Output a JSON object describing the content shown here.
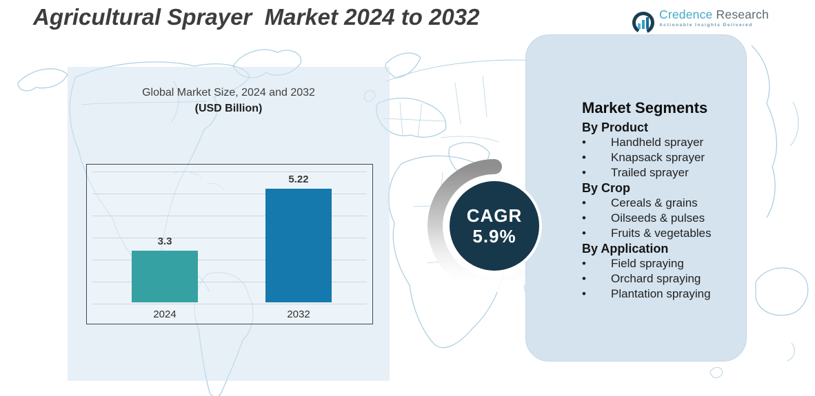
{
  "page": {
    "title": "Agricultural Sprayer  Market 2024 to 2032"
  },
  "logo": {
    "icon": "bar-chart-ring-icon",
    "brand_primary": "Credence",
    "brand_secondary": "Research",
    "tagline": "Actionable Insights Delivered"
  },
  "chart": {
    "title": "Global Market Size, 2024 and 2032",
    "subtitle": "(USD Billion)"
  },
  "chart_data": {
    "type": "bar",
    "title": "Global Market Size, 2024 and 2032",
    "subtitle": "(USD Billion)",
    "ylabel": "USD Billion",
    "xlabel": "",
    "categories": [
      "2024",
      "2032"
    ],
    "values": [
      3.3,
      5.22
    ],
    "value_labels": [
      "3.3",
      "5.22"
    ],
    "bar_colors": [
      "#36a1a2",
      "#1579ad"
    ],
    "ylim": [
      1.7,
      5.8
    ],
    "grid": true,
    "legend": false,
    "annotation": "CAGR 5.9%"
  },
  "cagr": {
    "label": "CAGR",
    "value": "5.9%"
  },
  "segments": {
    "heading": "Market Segments",
    "groups": [
      {
        "title": "By Product",
        "items": [
          "Handheld sprayer",
          "Knapsack sprayer",
          "Trailed sprayer"
        ]
      },
      {
        "title": "By Crop",
        "items": [
          "Cereals & grains",
          "Oilseeds & pulses",
          "Fruits & vegetables"
        ]
      },
      {
        "title": "By Application",
        "items": [
          "Field spraying",
          "Orchard spraying",
          "Plantation spraying"
        ]
      }
    ]
  },
  "ui": {
    "bullet": "•"
  },
  "colors": {
    "bar_2024": "#36a1a2",
    "bar_2032": "#1579ad",
    "cagr_circle": "#17384b",
    "panel_bg": "#d4e3ee",
    "map_line": "#aed0e2",
    "brand_teal": "#45a8c7",
    "brand_gray": "#5d6a72"
  }
}
